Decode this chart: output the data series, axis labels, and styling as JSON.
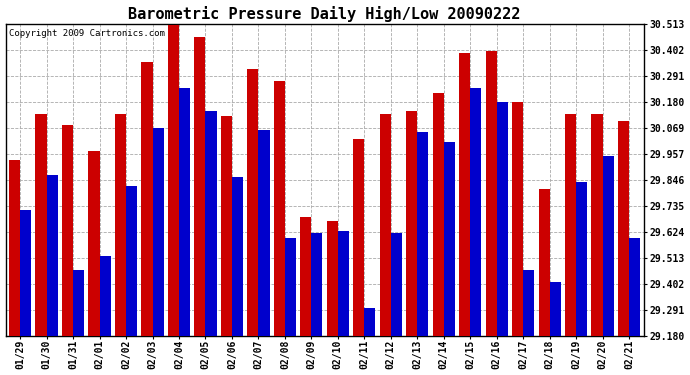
{
  "title": "Barometric Pressure Daily High/Low 20090222",
  "copyright": "Copyright 2009 Cartronics.com",
  "dates": [
    "01/29",
    "01/30",
    "01/31",
    "02/01",
    "02/02",
    "02/03",
    "02/04",
    "02/05",
    "02/06",
    "02/07",
    "02/08",
    "02/09",
    "02/10",
    "02/11",
    "02/12",
    "02/13",
    "02/14",
    "02/15",
    "02/16",
    "02/17",
    "02/18",
    "02/19",
    "02/20",
    "02/21"
  ],
  "highs": [
    29.93,
    30.13,
    30.08,
    29.97,
    30.13,
    30.35,
    30.51,
    30.46,
    30.12,
    30.32,
    30.27,
    29.69,
    29.67,
    30.02,
    30.13,
    30.14,
    30.22,
    30.39,
    30.4,
    30.18,
    29.81,
    30.13,
    30.13,
    30.1
  ],
  "lows": [
    29.72,
    29.87,
    29.46,
    29.52,
    29.82,
    30.07,
    30.24,
    30.14,
    29.86,
    30.06,
    29.6,
    29.62,
    29.63,
    29.3,
    29.62,
    30.05,
    30.01,
    30.24,
    30.18,
    29.46,
    29.41,
    29.84,
    29.95,
    29.6
  ],
  "high_color": "#cc0000",
  "low_color": "#0000cc",
  "bg_color": "#ffffff",
  "grid_color": "#aaaaaa",
  "ymin": 29.18,
  "ymax": 30.513,
  "yticks": [
    29.18,
    29.291,
    29.402,
    29.513,
    29.624,
    29.735,
    29.846,
    29.957,
    30.069,
    30.18,
    30.291,
    30.402,
    30.513
  ],
  "title_fontsize": 11,
  "tick_fontsize": 7,
  "copyright_fontsize": 6.5
}
